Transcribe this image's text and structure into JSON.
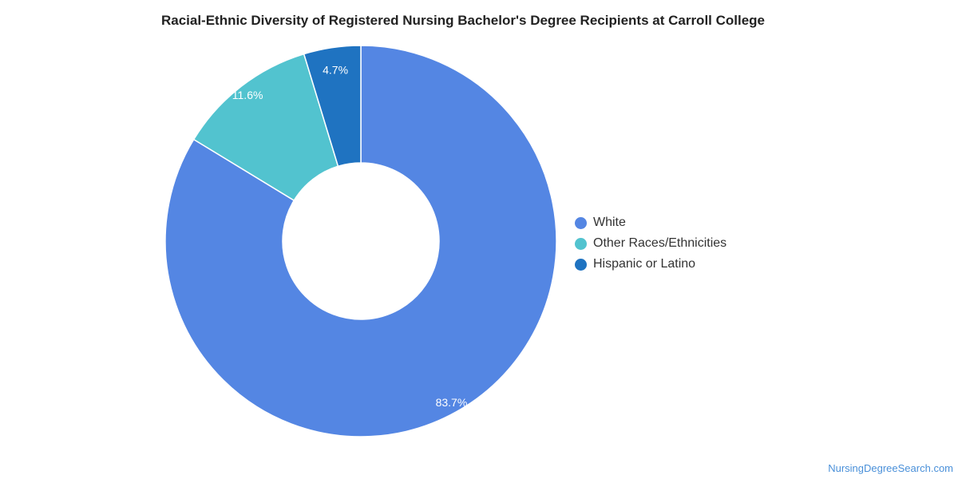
{
  "chart_data": {
    "type": "pie",
    "title": "Racial-Ethnic Diversity of Registered Nursing Bachelor's Degree Recipients at Carroll College",
    "donut": true,
    "slices": [
      {
        "label": "White",
        "value": 83.7,
        "display": "83.7%",
        "color": "#5486e3"
      },
      {
        "label": "Other Races/Ethnicities",
        "value": 11.6,
        "display": "11.6%",
        "color": "#52c3cf"
      },
      {
        "label": "Hispanic or Latino",
        "value": 4.7,
        "display": "4.7%",
        "color": "#1f73c1"
      }
    ],
    "legend_position": "right"
  },
  "watermark": "NursingDegreeSearch.com"
}
